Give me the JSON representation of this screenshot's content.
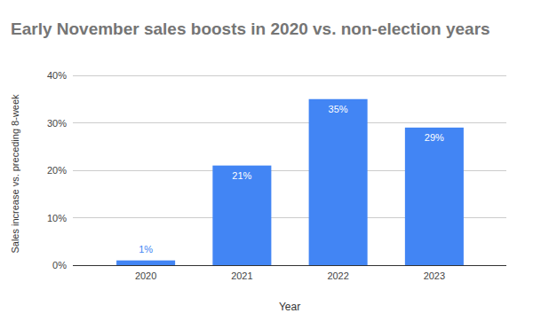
{
  "chart_data": {
    "type": "bar",
    "title": "Early November sales boosts in 2020 vs. non-election years",
    "x_label": "Year",
    "y_label": "Sales increase vs. preceding 8-week",
    "categories": [
      "2020",
      "2021",
      "2022",
      "2023"
    ],
    "values": [
      1,
      21,
      35,
      29
    ],
    "value_labels": [
      "1%",
      "21%",
      "35%",
      "29%"
    ],
    "color": "#4285f4",
    "ylim": [
      0,
      40
    ],
    "yticks": [
      {
        "value": 0,
        "label": "0%"
      },
      {
        "value": 10,
        "label": "10%"
      },
      {
        "value": 20,
        "label": "20%"
      },
      {
        "value": 30,
        "label": "30%"
      },
      {
        "value": 40,
        "label": "40%"
      }
    ],
    "grid": true,
    "data_labels": true
  }
}
